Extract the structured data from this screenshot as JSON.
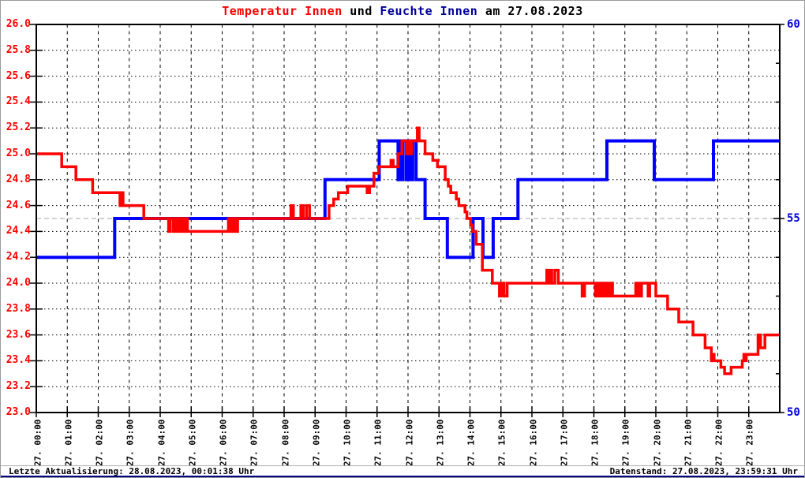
{
  "title": {
    "part1": "Temperatur Innen",
    "part2": " und ",
    "part3": "Feuchte Innen",
    "part4": " am 27.08.2023"
  },
  "colors": {
    "temperature_line": "#ff0000",
    "humidity_line": "#0000ff",
    "left_axis_labels": "#ff0000",
    "right_axis_labels": "#0000dd",
    "title_temp": "#ff0000",
    "title_humidity": "#000099",
    "grid_black": "#000000",
    "grid_gray": "#c4c4c4",
    "footer_accent": "#000080"
  },
  "footer": {
    "left": "Letzte Aktualisierung: 28.08.2023, 00:01:38 Uhr",
    "right": "Datenstand: 27.08.2023, 23:59:31 Uhr"
  },
  "chart_data": {
    "type": "line",
    "title": "Temperatur Innen und Feuchte Innen am 27.08.2023",
    "grid": "on",
    "x_axis": {
      "range_hours": [
        0,
        24
      ],
      "tick_labels": [
        "27. 00:00",
        "27. 01:00",
        "27. 02:00",
        "27. 03:00",
        "27. 04:00",
        "27. 05:00",
        "27. 06:00",
        "27. 07:00",
        "27. 08:00",
        "27. 09:00",
        "27. 10:00",
        "27. 11:00",
        "27. 12:00",
        "27. 13:00",
        "27. 14:00",
        "27. 15:00",
        "27. 16:00",
        "27. 17:00",
        "27. 18:00",
        "27. 19:00",
        "27. 20:00",
        "27. 21:00",
        "27. 22:00",
        "27. 23:00"
      ]
    },
    "y_left": {
      "min": 23.0,
      "max": 26.0,
      "tick_step": 0.2,
      "tick_values": [
        26.0,
        25.8,
        25.6,
        25.4,
        25.2,
        25.0,
        24.8,
        24.6,
        24.4,
        24.2,
        24.0,
        23.8,
        23.6,
        23.4,
        23.2,
        23.0
      ],
      "tick_labels": [
        "26.0",
        "25.8",
        "25.6",
        "25.4",
        "25.2",
        "25.0",
        "24.8",
        "24.6",
        "24.4",
        "24.2",
        "24.0",
        "23.8",
        "23.6",
        "23.4",
        "23.2",
        "23.0"
      ]
    },
    "y_right": {
      "min": 50,
      "max": 60,
      "minor_step": 1,
      "tick_values": [
        60,
        55,
        50
      ],
      "tick_labels": [
        "60",
        "55",
        "50"
      ],
      "gray_gridline_at": 55
    },
    "series": [
      {
        "name": "Feuchte Innen",
        "axis": "right",
        "color": "#0000ff",
        "mode": "step",
        "points": [
          [
            0,
            54
          ],
          [
            2.53,
            55
          ],
          [
            9.32,
            56
          ],
          [
            11.07,
            57
          ],
          [
            11.68,
            56
          ],
          [
            11.73,
            57
          ],
          [
            11.79,
            56
          ],
          [
            11.84,
            57
          ],
          [
            11.95,
            56
          ],
          [
            11.99,
            57
          ],
          [
            12.03,
            56
          ],
          [
            12.07,
            57
          ],
          [
            12.11,
            56
          ],
          [
            12.15,
            57
          ],
          [
            12.26,
            56
          ],
          [
            12.55,
            55
          ],
          [
            13.27,
            54
          ],
          [
            14.1,
            55
          ],
          [
            14.42,
            54
          ],
          [
            14.75,
            55
          ],
          [
            15.55,
            56
          ],
          [
            18.42,
            57
          ],
          [
            19.95,
            56
          ],
          [
            21.86,
            57
          ],
          [
            24,
            57
          ]
        ]
      },
      {
        "name": "Temperatur Innen",
        "axis": "left",
        "color": "#ff0000",
        "mode": "step",
        "points": [
          [
            0,
            25.0
          ],
          [
            0.82,
            24.9
          ],
          [
            1.28,
            24.8
          ],
          [
            1.82,
            24.7
          ],
          [
            2.7,
            24.6
          ],
          [
            2.76,
            24.7
          ],
          [
            2.8,
            24.6
          ],
          [
            3.47,
            24.5
          ],
          [
            4.27,
            24.4
          ],
          [
            4.32,
            24.5
          ],
          [
            4.42,
            24.4
          ],
          [
            4.47,
            24.5
          ],
          [
            4.55,
            24.4
          ],
          [
            4.6,
            24.5
          ],
          [
            4.64,
            24.4
          ],
          [
            4.68,
            24.5
          ],
          [
            4.72,
            24.4
          ],
          [
            4.76,
            24.5
          ],
          [
            4.8,
            24.4
          ],
          [
            4.84,
            24.5
          ],
          [
            4.88,
            24.4
          ],
          [
            6.2,
            24.5
          ],
          [
            6.24,
            24.4
          ],
          [
            6.3,
            24.5
          ],
          [
            6.34,
            24.4
          ],
          [
            6.4,
            24.5
          ],
          [
            6.44,
            24.4
          ],
          [
            6.5,
            24.5
          ],
          [
            8.22,
            24.6
          ],
          [
            8.3,
            24.5
          ],
          [
            8.54,
            24.6
          ],
          [
            8.62,
            24.5
          ],
          [
            8.72,
            24.6
          ],
          [
            8.82,
            24.5
          ],
          [
            9.45,
            24.6
          ],
          [
            9.6,
            24.65
          ],
          [
            9.75,
            24.7
          ],
          [
            10.05,
            24.75
          ],
          [
            10.68,
            24.7
          ],
          [
            10.76,
            24.75
          ],
          [
            10.9,
            24.85
          ],
          [
            11.05,
            24.9
          ],
          [
            11.45,
            24.95
          ],
          [
            11.52,
            24.9
          ],
          [
            11.68,
            25.0
          ],
          [
            11.8,
            25.1
          ],
          [
            11.95,
            25.0
          ],
          [
            12.0,
            25.1
          ],
          [
            12.07,
            25.0
          ],
          [
            12.12,
            25.1
          ],
          [
            12.3,
            25.2
          ],
          [
            12.36,
            25.1
          ],
          [
            12.55,
            25.0
          ],
          [
            12.8,
            24.95
          ],
          [
            12.95,
            24.9
          ],
          [
            13.2,
            24.8
          ],
          [
            13.3,
            24.75
          ],
          [
            13.38,
            24.7
          ],
          [
            13.56,
            24.65
          ],
          [
            13.64,
            24.6
          ],
          [
            13.84,
            24.55
          ],
          [
            13.9,
            24.5
          ],
          [
            14.02,
            24.45
          ],
          [
            14.08,
            24.4
          ],
          [
            14.2,
            24.3
          ],
          [
            14.4,
            24.1
          ],
          [
            14.72,
            24.0
          ],
          [
            14.95,
            23.9
          ],
          [
            15.02,
            24.0
          ],
          [
            15.1,
            23.9
          ],
          [
            15.2,
            24.0
          ],
          [
            16.48,
            24.1
          ],
          [
            16.52,
            24.0
          ],
          [
            16.6,
            24.1
          ],
          [
            16.64,
            24.0
          ],
          [
            16.74,
            24.1
          ],
          [
            16.85,
            24.0
          ],
          [
            17.62,
            23.9
          ],
          [
            17.7,
            24.0
          ],
          [
            18.05,
            23.9
          ],
          [
            18.1,
            24.0
          ],
          [
            18.14,
            23.9
          ],
          [
            18.18,
            24.0
          ],
          [
            18.22,
            23.9
          ],
          [
            18.26,
            24.0
          ],
          [
            18.3,
            23.9
          ],
          [
            18.34,
            24.0
          ],
          [
            18.4,
            23.9
          ],
          [
            18.45,
            24.0
          ],
          [
            18.5,
            23.9
          ],
          [
            18.55,
            24.0
          ],
          [
            18.6,
            23.9
          ],
          [
            19.35,
            24.0
          ],
          [
            19.4,
            23.9
          ],
          [
            19.44,
            24.0
          ],
          [
            19.5,
            23.9
          ],
          [
            19.54,
            24.0
          ],
          [
            19.75,
            23.9
          ],
          [
            19.8,
            24.0
          ],
          [
            20.0,
            23.9
          ],
          [
            20.38,
            23.8
          ],
          [
            20.74,
            23.7
          ],
          [
            21.2,
            23.6
          ],
          [
            21.59,
            23.5
          ],
          [
            21.79,
            23.4
          ],
          [
            21.84,
            23.45
          ],
          [
            21.88,
            23.4
          ],
          [
            22.1,
            23.35
          ],
          [
            22.22,
            23.3
          ],
          [
            22.43,
            23.35
          ],
          [
            22.79,
            23.4
          ],
          [
            22.84,
            23.45
          ],
          [
            22.88,
            23.4
          ],
          [
            22.92,
            23.45
          ],
          [
            23.3,
            23.6
          ],
          [
            23.38,
            23.5
          ],
          [
            23.52,
            23.6
          ],
          [
            24,
            23.6
          ]
        ]
      }
    ]
  }
}
